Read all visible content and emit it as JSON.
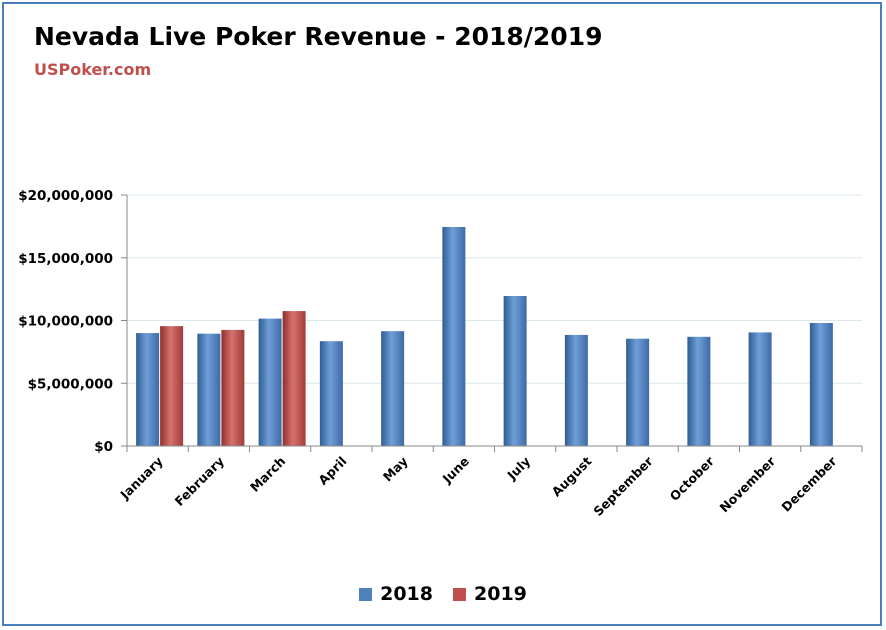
{
  "colors": {
    "frame": "#4a7ebb",
    "grid": "#dbe8ee",
    "axis": "#888888",
    "subtitle": "#c0504d"
  },
  "chart_data": {
    "type": "bar",
    "title": "Nevada Live Poker Revenue - 2018/2019",
    "subtitle": "USPoker.com",
    "categories": [
      "January",
      "February",
      "March",
      "April",
      "May",
      "June",
      "July",
      "August",
      "September",
      "October",
      "November",
      "December"
    ],
    "series": [
      {
        "name": "2018",
        "color": "#4f81bd",
        "values": [
          9000000,
          8950000,
          10150000,
          8350000,
          9150000,
          17450000,
          11950000,
          8850000,
          8550000,
          8700000,
          9050000,
          9800000
        ]
      },
      {
        "name": "2019",
        "color": "#c0504d",
        "values": [
          9550000,
          9250000,
          10750000,
          null,
          null,
          null,
          null,
          null,
          null,
          null,
          null,
          null
        ]
      }
    ],
    "yticks": [
      "$0",
      "$5,000,000",
      "$10,000,000",
      "$15,000,000",
      "$20,000,000"
    ],
    "ylim": [
      0,
      20000000
    ],
    "grid": true,
    "legend": "bottom"
  }
}
